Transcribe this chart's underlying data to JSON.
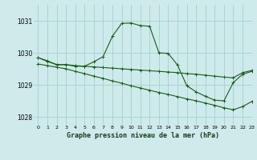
{
  "title": "Graphe pression niveau de la mer (hPa)",
  "background_color": "#ceeaea",
  "grid_color": "#a8d4d4",
  "line_color": "#1a5c1a",
  "xlim": [
    -0.5,
    23
  ],
  "ylim": [
    1027.75,
    1031.5
  ],
  "yticks": [
    1028,
    1029,
    1030,
    1031
  ],
  "xticks": [
    0,
    1,
    2,
    3,
    4,
    5,
    6,
    7,
    8,
    9,
    10,
    11,
    12,
    13,
    14,
    15,
    16,
    17,
    18,
    19,
    20,
    21,
    22,
    23
  ],
  "line1_x": [
    0,
    1,
    2,
    3,
    4,
    5,
    6,
    7,
    8,
    9,
    10,
    11,
    12,
    13,
    14,
    15,
    16,
    17,
    18,
    19,
    20,
    21,
    22,
    23
  ],
  "line1_y": [
    1029.85,
    1029.75,
    1029.63,
    1029.63,
    1029.6,
    1029.58,
    1029.56,
    1029.54,
    1029.52,
    1029.5,
    1029.48,
    1029.46,
    1029.44,
    1029.42,
    1029.4,
    1029.38,
    1029.35,
    1029.33,
    1029.3,
    1029.27,
    1029.24,
    1029.22,
    1029.38,
    1029.45
  ],
  "line2_x": [
    0,
    1,
    2,
    3,
    4,
    5,
    6,
    7,
    8,
    9,
    10,
    11,
    12,
    13,
    14,
    15,
    16,
    17,
    18,
    19,
    20,
    21,
    22,
    23
  ],
  "line2_y": [
    1029.65,
    1029.6,
    1029.55,
    1029.5,
    1029.42,
    1029.35,
    1029.27,
    1029.2,
    1029.12,
    1029.05,
    1028.97,
    1028.9,
    1028.83,
    1028.76,
    1028.7,
    1028.63,
    1028.56,
    1028.5,
    1028.43,
    1028.36,
    1028.28,
    1028.22,
    1028.32,
    1028.48
  ],
  "line3_x": [
    0,
    1,
    2,
    3,
    4,
    5,
    6,
    7,
    8,
    9,
    10,
    11,
    12,
    13,
    14,
    15,
    16,
    17,
    18,
    19,
    20,
    21,
    22,
    23
  ],
  "line3_y": [
    1029.85,
    1029.73,
    1029.63,
    1029.63,
    1029.58,
    1029.58,
    1029.72,
    1029.88,
    1030.52,
    1030.92,
    1030.93,
    1030.85,
    1030.83,
    1030.0,
    1029.98,
    1029.62,
    1028.97,
    1028.78,
    1028.64,
    1028.52,
    1028.5,
    1029.07,
    1029.33,
    1029.42
  ]
}
